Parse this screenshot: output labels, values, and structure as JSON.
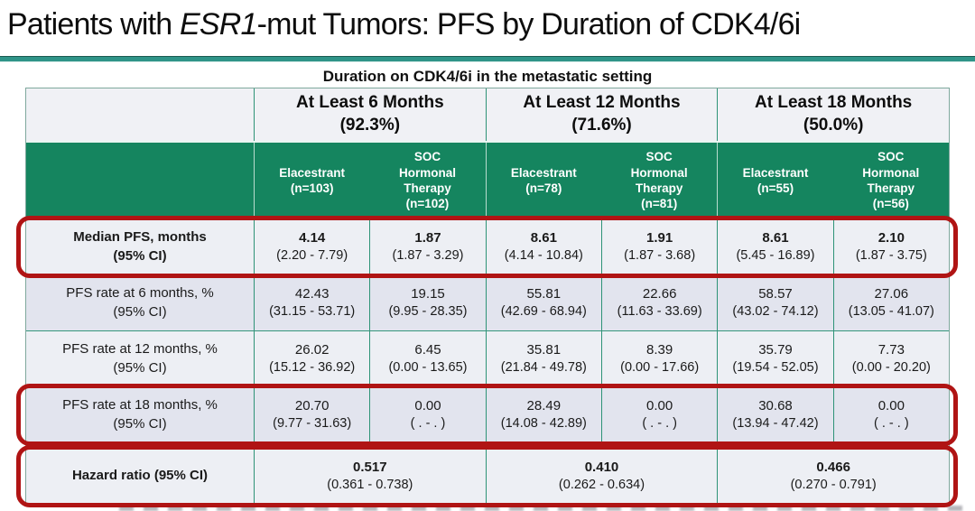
{
  "title": {
    "prefix": "Patients with ",
    "italic": "ESR1",
    "suffix": "-mut Tumors: PFS by Duration of CDK4/6i"
  },
  "caption": "Duration on CDK4/6i in the metastatic setting",
  "colors": {
    "green_header": "#15855F",
    "cell_border_teal": "#2E9377",
    "highlight_red": "#B01414",
    "row_light": "#EDEFF4",
    "row_lavender": "#E2E4EE",
    "title_rule_teal": "#2F9488"
  },
  "group_headers": [
    {
      "label": "At Least 6 Months",
      "pct": "(92.3%)"
    },
    {
      "label": "At Least 12 Months",
      "pct": "(71.6%)"
    },
    {
      "label": "At Least 18 Months",
      "pct": "(50.0%)"
    }
  ],
  "arm_headers": [
    {
      "name": "Elacestrant",
      "n": "(n=103)"
    },
    {
      "name": "SOC Hormonal Therapy",
      "n": "(n=102)"
    },
    {
      "name": "Elacestrant",
      "n": "(n=78)"
    },
    {
      "name": "SOC Hormonal Therapy",
      "n": "(n=81)"
    },
    {
      "name": "Elacestrant",
      "n": "(n=55)"
    },
    {
      "name": "SOC Hormonal Therapy",
      "n": "(n=56)"
    }
  ],
  "rows": [
    {
      "label": "Median PFS, months",
      "sub": "(95% CI)",
      "cells": [
        {
          "v": "4.14",
          "ci": "(2.20 - 7.79)"
        },
        {
          "v": "1.87",
          "ci": "(1.87 - 3.29)"
        },
        {
          "v": "8.61",
          "ci": "(4.14 - 10.84)"
        },
        {
          "v": "1.91",
          "ci": "(1.87 - 3.68)"
        },
        {
          "v": "8.61",
          "ci": "(5.45 - 16.89)"
        },
        {
          "v": "2.10",
          "ci": "(1.87 - 3.75)"
        }
      ]
    },
    {
      "label": "PFS rate at 6 months, %",
      "sub": "(95% CI)",
      "cells": [
        {
          "v": "42.43",
          "ci": "(31.15 - 53.71)"
        },
        {
          "v": "19.15",
          "ci": "(9.95 - 28.35)"
        },
        {
          "v": "55.81",
          "ci": "(42.69 - 68.94)"
        },
        {
          "v": "22.66",
          "ci": "(11.63 - 33.69)"
        },
        {
          "v": "58.57",
          "ci": "(43.02 - 74.12)"
        },
        {
          "v": "27.06",
          "ci": "(13.05 - 41.07)"
        }
      ]
    },
    {
      "label": "PFS rate at 12 months, %",
      "sub": "(95% CI)",
      "cells": [
        {
          "v": "26.02",
          "ci": "(15.12 - 36.92)"
        },
        {
          "v": "6.45",
          "ci": "(0.00 - 13.65)"
        },
        {
          "v": "35.81",
          "ci": "(21.84 - 49.78)"
        },
        {
          "v": "8.39",
          "ci": "(0.00 - 17.66)"
        },
        {
          "v": "35.79",
          "ci": "(19.54 - 52.05)"
        },
        {
          "v": "7.73",
          "ci": "(0.00 - 20.20)"
        }
      ]
    },
    {
      "label": "PFS rate at 18 months, %",
      "sub": "(95% CI)",
      "cells": [
        {
          "v": "20.70",
          "ci": "(9.77 - 31.63)"
        },
        {
          "v": "0.00",
          "ci": "( .  -  . )"
        },
        {
          "v": "28.49",
          "ci": "(14.08 - 42.89)"
        },
        {
          "v": "0.00",
          "ci": "( .  -  . )"
        },
        {
          "v": "30.68",
          "ci": "(13.94 - 47.42)"
        },
        {
          "v": "0.00",
          "ci": "( .  -  . )"
        }
      ]
    }
  ],
  "hazard": {
    "label": "Hazard ratio (95% CI)",
    "cells": [
      {
        "v": "0.517",
        "ci": "(0.361 - 0.738)"
      },
      {
        "v": "0.410",
        "ci": "(0.262 - 0.634)"
      },
      {
        "v": "0.466",
        "ci": "(0.270 - 0.791)"
      }
    ]
  }
}
